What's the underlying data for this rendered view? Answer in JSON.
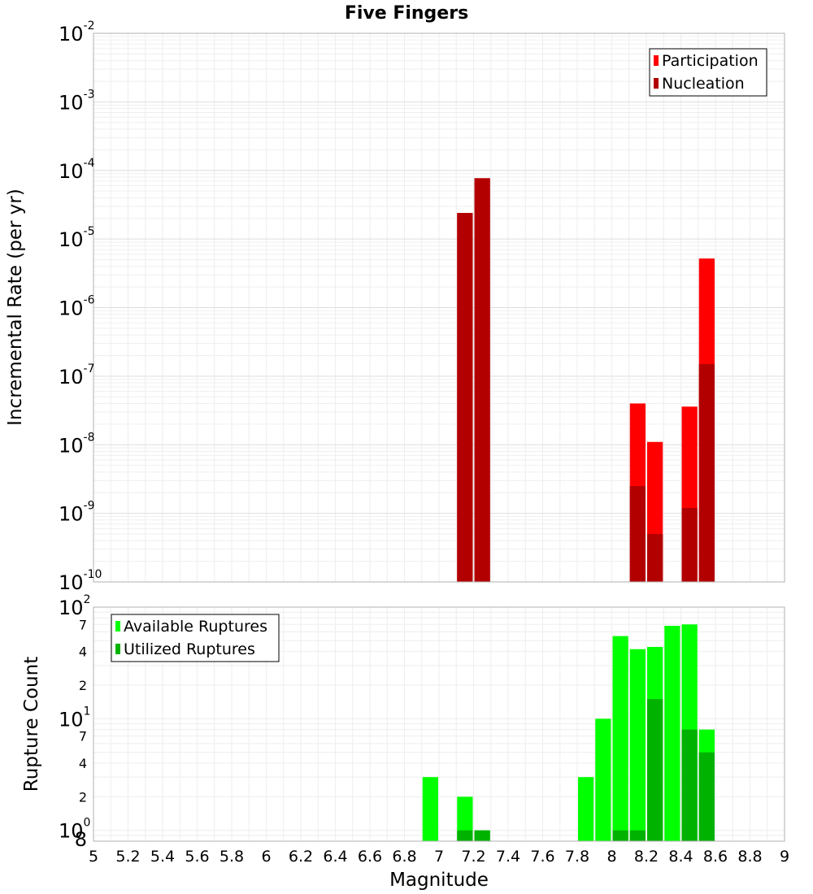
{
  "chart_data": [
    {
      "type": "bar",
      "title": "Five Fingers",
      "ylabel": "Incremental Rate (per yr)",
      "yscale": "log",
      "ylim": [
        1e-10,
        0.01
      ],
      "xlim": [
        5,
        9
      ],
      "grid": true,
      "legend_position": "top-right",
      "y_tick_labels": [
        {
          "base": "10",
          "exp": "-10",
          "value": 1e-10
        },
        {
          "base": "10",
          "exp": "-9",
          "value": 1e-09
        },
        {
          "base": "10",
          "exp": "-8",
          "value": 1e-08
        },
        {
          "base": "10",
          "exp": "-7",
          "value": 1e-07
        },
        {
          "base": "10",
          "exp": "-6",
          "value": 1e-06
        },
        {
          "base": "10",
          "exp": "-5",
          "value": 1e-05
        },
        {
          "base": "10",
          "exp": "-4",
          "value": 0.0001
        },
        {
          "base": "10",
          "exp": "-3",
          "value": 0.001
        },
        {
          "base": "10",
          "exp": "-2",
          "value": 0.01
        }
      ],
      "series": [
        {
          "name": "Participation",
          "color": "#ff0000",
          "points": [
            {
              "x": 7.15,
              "y": 2.4e-05
            },
            {
              "x": 7.25,
              "y": 7.7e-05
            },
            {
              "x": 8.15,
              "y": 4e-08
            },
            {
              "x": 8.25,
              "y": 1.1e-08
            },
            {
              "x": 8.45,
              "y": 3.6e-08
            },
            {
              "x": 8.55,
              "y": 5.2e-06
            }
          ]
        },
        {
          "name": "Nucleation",
          "color": "#b20000",
          "points": [
            {
              "x": 7.15,
              "y": 2.4e-05
            },
            {
              "x": 7.25,
              "y": 7.7e-05
            },
            {
              "x": 8.15,
              "y": 2.5e-09
            },
            {
              "x": 8.25,
              "y": 5e-10
            },
            {
              "x": 8.45,
              "y": 1.2e-09
            },
            {
              "x": 8.55,
              "y": 1.5e-07
            }
          ]
        }
      ]
    },
    {
      "type": "bar",
      "ylabel": "Rupture Count",
      "xlabel": "Magnitude",
      "yscale": "log",
      "ylim": [
        0.8,
        100
      ],
      "xlim": [
        5,
        9
      ],
      "grid": true,
      "legend_position": "top-left",
      "x_ticks": [
        "5",
        "5.2",
        "5.4",
        "5.6",
        "5.8",
        "6",
        "6.2",
        "6.4",
        "6.6",
        "6.8",
        "7",
        "7.2",
        "7.4",
        "7.6",
        "7.8",
        "8",
        "8.2",
        "8.4",
        "8.6",
        "8.8",
        "9"
      ],
      "y_major_labels": [
        {
          "base": "10",
          "exp": "0",
          "value": 1
        },
        {
          "base": "10",
          "exp": "1",
          "value": 10
        },
        {
          "base": "10",
          "exp": "2",
          "value": 100
        }
      ],
      "y_minor_labels": [
        {
          "label": "8",
          "value": 0.8
        },
        {
          "label": "2",
          "value": 2
        },
        {
          "label": "4",
          "value": 4
        },
        {
          "label": "7",
          "value": 7
        },
        {
          "label": "2",
          "value": 20
        },
        {
          "label": "4",
          "value": 40
        },
        {
          "label": "7",
          "value": 70
        }
      ],
      "series": [
        {
          "name": "Available Ruptures",
          "color": "#00ff00",
          "points": [
            {
              "x": 6.95,
              "y": 3
            },
            {
              "x": 7.15,
              "y": 2
            },
            {
              "x": 7.25,
              "y": 1
            },
            {
              "x": 7.85,
              "y": 3
            },
            {
              "x": 7.95,
              "y": 10
            },
            {
              "x": 8.05,
              "y": 55
            },
            {
              "x": 8.15,
              "y": 42
            },
            {
              "x": 8.25,
              "y": 44
            },
            {
              "x": 8.35,
              "y": 68
            },
            {
              "x": 8.45,
              "y": 70
            },
            {
              "x": 8.55,
              "y": 8
            }
          ]
        },
        {
          "name": "Utilized Ruptures",
          "color": "#00b200",
          "points": [
            {
              "x": 7.15,
              "y": 1
            },
            {
              "x": 7.25,
              "y": 1
            },
            {
              "x": 8.05,
              "y": 1
            },
            {
              "x": 8.15,
              "y": 1
            },
            {
              "x": 8.25,
              "y": 15
            },
            {
              "x": 8.45,
              "y": 8
            },
            {
              "x": 8.55,
              "y": 5
            }
          ]
        }
      ]
    }
  ]
}
